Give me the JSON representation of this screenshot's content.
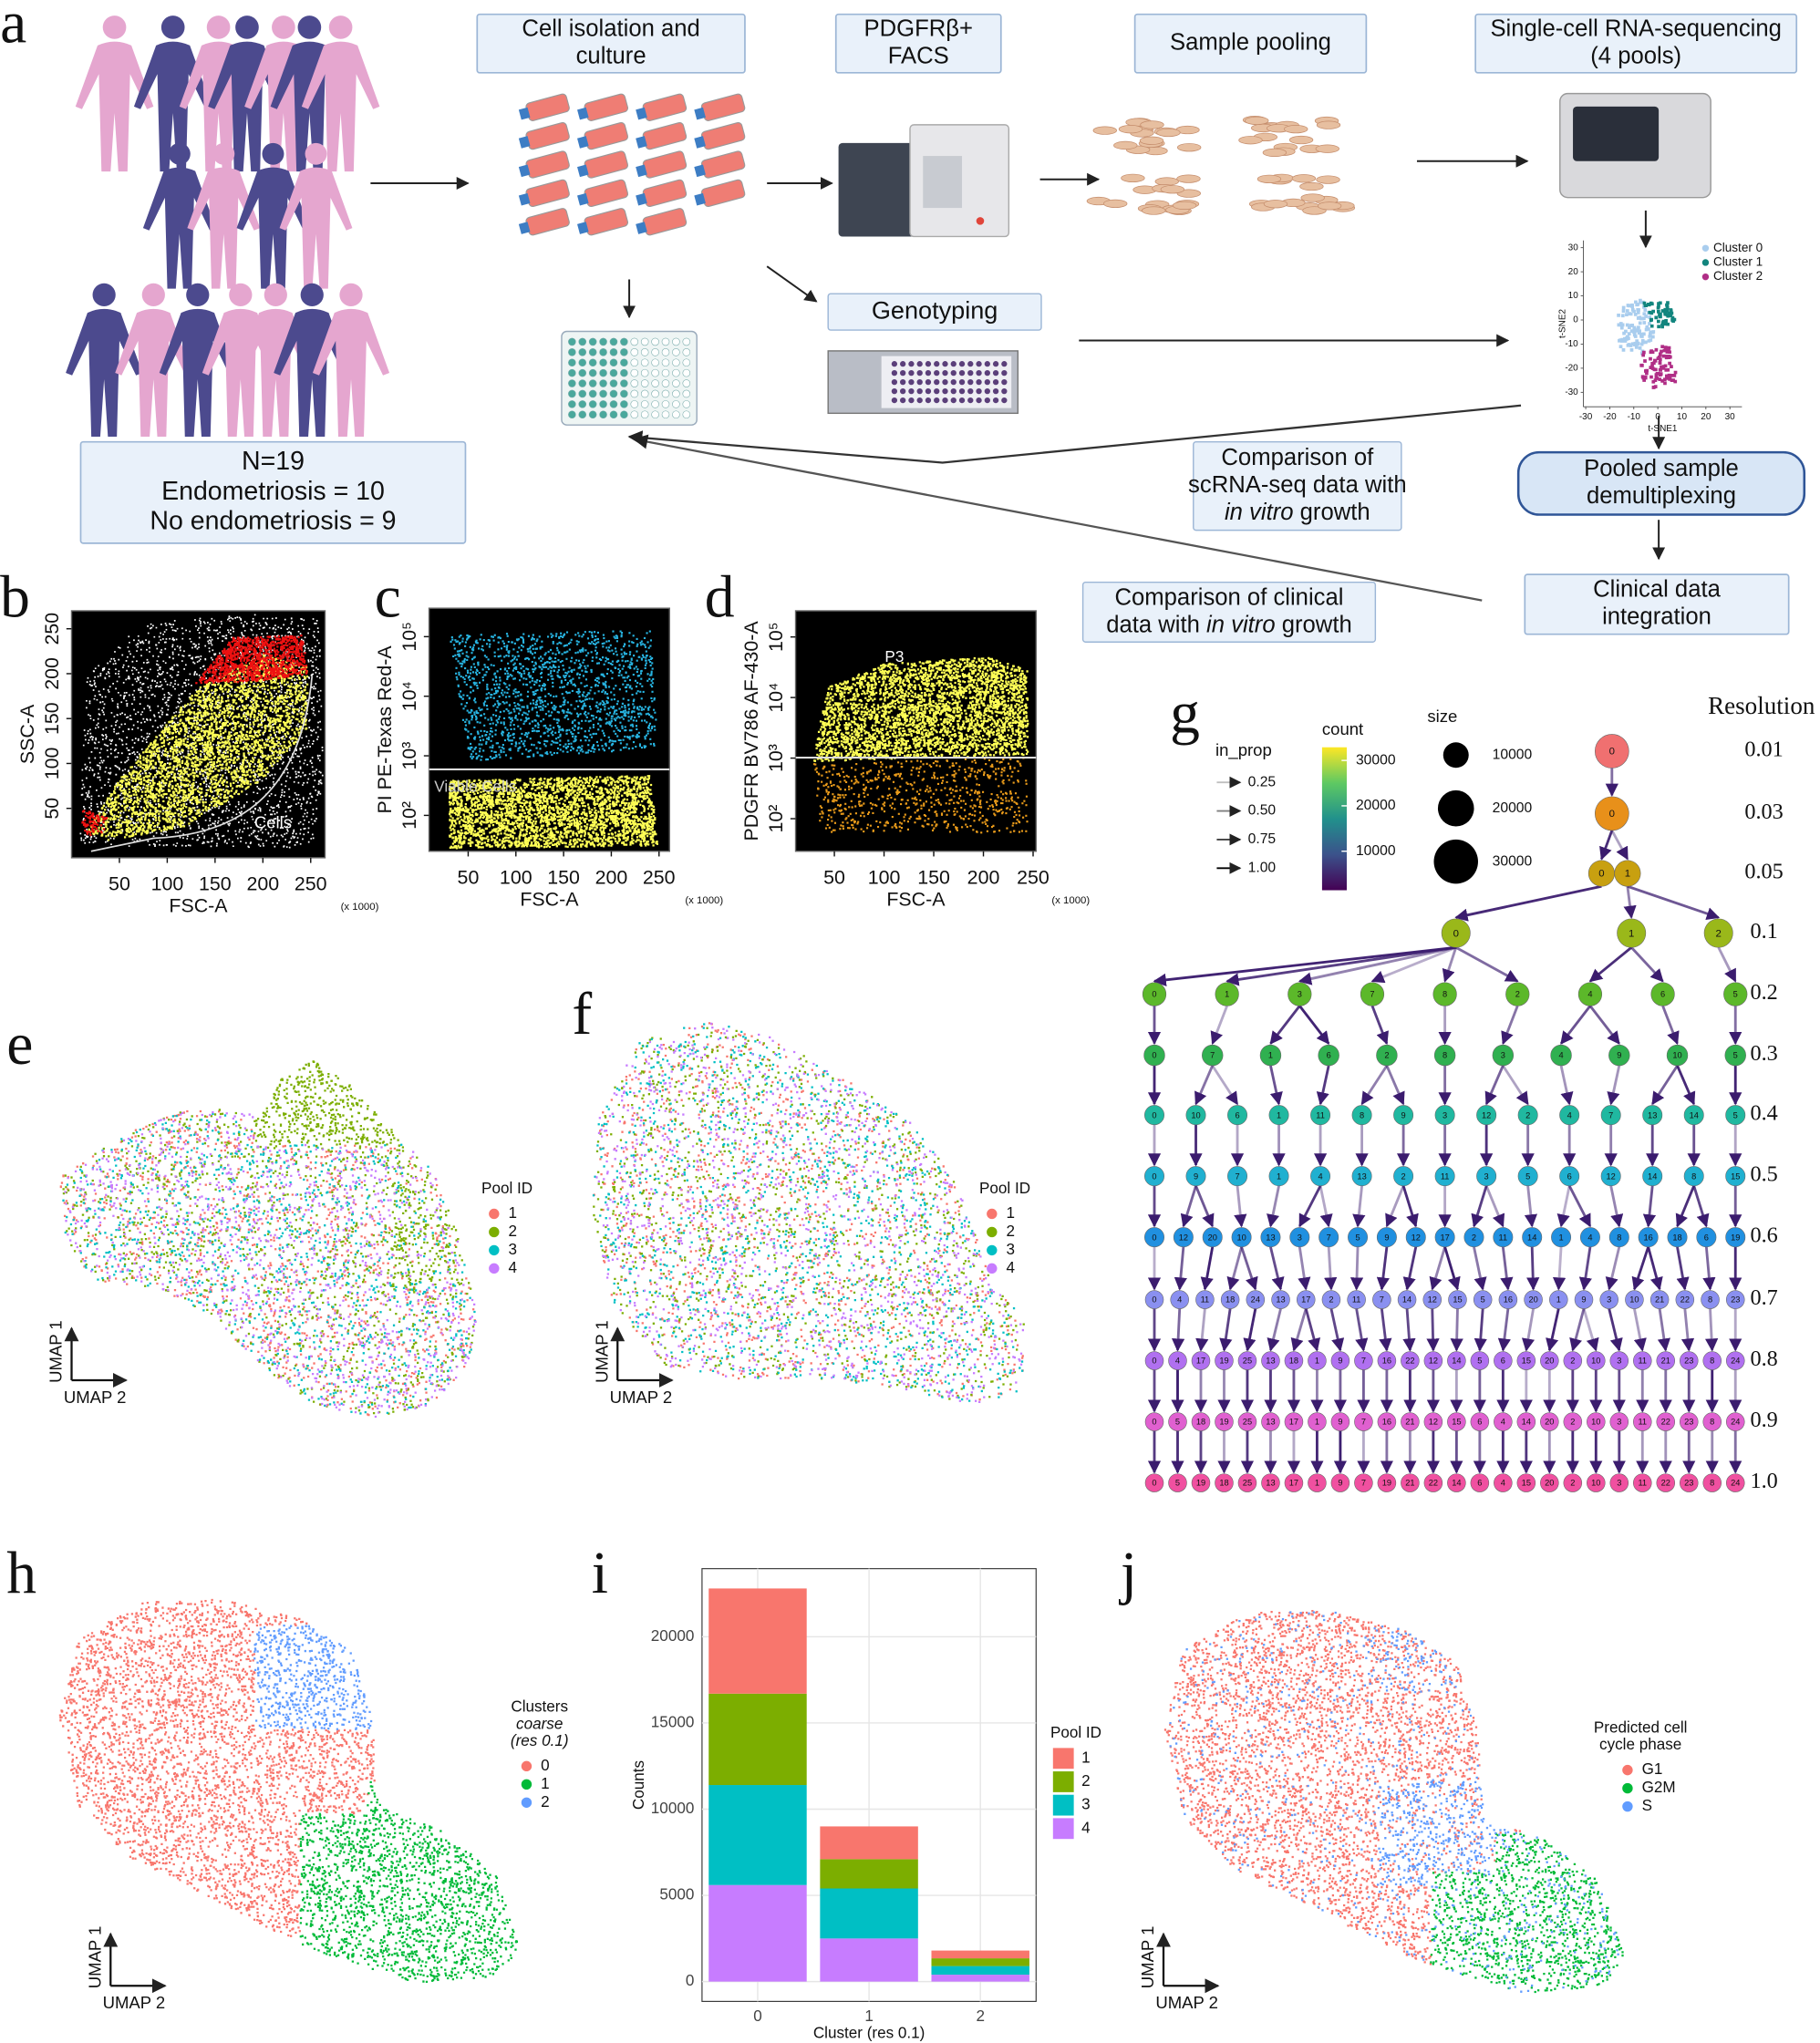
{
  "panel_labels": [
    "a",
    "b",
    "c",
    "d",
    "e",
    "f",
    "g",
    "h",
    "i",
    "j"
  ],
  "workflow": {
    "steps": [
      {
        "lines": [
          "Cell isolation and",
          "culture"
        ]
      },
      {
        "lines": [
          "PDGFRβ+",
          "FACS"
        ]
      },
      {
        "lines": [
          "Sample pooling"
        ]
      },
      {
        "lines": [
          "Single-cell RNA-sequencing",
          "(4 pools)"
        ]
      }
    ],
    "genotyping": "Genotyping",
    "cohort": [
      "N=19",
      "Endometriosis = 10",
      "No endometriosis = 9"
    ],
    "demultiplexing": [
      "Pooled sample",
      "demultiplexing"
    ],
    "clinical": [
      "Clinical data",
      "integration"
    ],
    "comparison_scrna": {
      "lines": [
        "Comparison of",
        "scRNA-seq data with"
      ],
      "italic": "in vitro",
      "tail": "growth"
    },
    "comparison_clinical": {
      "lines": [
        "Comparison of clinical"
      ],
      "prefix": "data with",
      "italic": "in vitro",
      "tail": "growth"
    },
    "tsne": {
      "xlabel": "t-SNE1",
      "ylabel": "t-SNE2",
      "xlim": [
        -31,
        35
      ],
      "ylim": [
        -36,
        33
      ],
      "xticks": [
        -30,
        -20,
        -10,
        0,
        10,
        20,
        30
      ],
      "yticks": [
        30,
        20,
        10,
        0,
        -10,
        -20,
        -30
      ],
      "clusters": [
        {
          "name": "Cluster 0",
          "color": "#a9cdee"
        },
        {
          "name": "Cluster 1",
          "color": "#12857e"
        },
        {
          "name": "Cluster 2",
          "color": "#b02e86"
        }
      ]
    }
  },
  "flow": [
    {
      "xlabel": "FSC-A",
      "ylabel": "SSC-A",
      "unit": "(x 1000)",
      "xlim": [
        0,
        265
      ],
      "ylim": [
        -5,
        270
      ],
      "ylog": false,
      "xticks": [
        50,
        100,
        150,
        200,
        250
      ],
      "yticks": [
        50,
        100,
        150,
        200,
        250
      ],
      "gate": "Cells"
    },
    {
      "xlabel": "FSC-A",
      "ylabel": "PI PE-Texas Red-A",
      "unit": "(x 1000)",
      "xlim": [
        9,
        261
      ],
      "ylim": [
        25,
        300000
      ],
      "ylog": true,
      "xticks": [
        50,
        100,
        150,
        200,
        250
      ],
      "yticks": [
        {
          "value": 100,
          "label": "10²"
        },
        {
          "value": 1000,
          "label": "10³"
        },
        {
          "value": 10000,
          "label": "10⁴"
        },
        {
          "value": 100000,
          "label": "10⁵"
        }
      ],
      "gate": "Viable Cells"
    },
    {
      "xlabel": "FSC-A",
      "ylabel": "PDGFR BV786 AF-430-A",
      "unit": "(x 1000)",
      "xlim": [
        11,
        253
      ],
      "ylim": [
        29,
        270000
      ],
      "ylog": true,
      "xticks": [
        50,
        100,
        150,
        200,
        250
      ],
      "yticks": [
        {
          "value": 100,
          "label": "10²"
        },
        {
          "value": 1000,
          "label": "10³"
        },
        {
          "value": 10000,
          "label": "10⁴"
        },
        {
          "value": 100000,
          "label": "10⁵"
        }
      ],
      "gate": "P3"
    }
  ],
  "umaps": {
    "e": {
      "xlabel": "UMAP 2",
      "ylabel": "UMAP 1",
      "legend_title": [
        "Pool ID"
      ],
      "groups": [
        {
          "name": "1",
          "color": "#F8766D"
        },
        {
          "name": "2",
          "color": "#7CAE00"
        },
        {
          "name": "3",
          "color": "#00BFC4"
        },
        {
          "name": "4",
          "color": "#C77CFF"
        }
      ]
    },
    "f": {
      "xlabel": "UMAP 2",
      "ylabel": "UMAP 1",
      "legend_title": [
        "Pool ID"
      ],
      "groups": [
        {
          "name": "1",
          "color": "#F8766D"
        },
        {
          "name": "2",
          "color": "#7CAE00"
        },
        {
          "name": "3",
          "color": "#00BFC4"
        },
        {
          "name": "4",
          "color": "#C77CFF"
        }
      ]
    },
    "h": {
      "xlabel": "UMAP 2",
      "ylabel": "UMAP 1",
      "legend_title": [
        "Clusters"
      ],
      "legend_italic": "coarse",
      "legend_note": "(res 0.1)",
      "groups": [
        {
          "name": "0",
          "color": "#F8766D"
        },
        {
          "name": "1",
          "color": "#00BA38"
        },
        {
          "name": "2",
          "color": "#619CFF"
        }
      ]
    },
    "j": {
      "xlabel": "UMAP 2",
      "ylabel": "UMAP 1",
      "legend_title": [
        "Predicted cell",
        "cycle phase"
      ],
      "groups": [
        {
          "name": "G1",
          "color": "#F8766D"
        },
        {
          "name": "G2M",
          "color": "#00BA38"
        },
        {
          "name": "S",
          "color": "#619CFF"
        }
      ]
    }
  },
  "clustree": {
    "title": "Resolution",
    "resolutions": [
      "0.01",
      "0.03",
      "0.05",
      "0.1",
      "0.2",
      "0.3",
      "0.4",
      "0.5",
      "0.6",
      "0.7",
      "0.8",
      "0.9",
      "1.0"
    ],
    "rows": [
      [
        "0"
      ],
      [
        "0"
      ],
      [
        "0",
        "1"
      ],
      [
        "0",
        "1",
        "2"
      ],
      [
        "0",
        "1",
        "3",
        "7",
        "8",
        "2",
        "4",
        "6",
        "5"
      ],
      [
        "0",
        "7",
        "1",
        "6",
        "2",
        "8",
        "3",
        "4",
        "9",
        "10",
        "5"
      ],
      [
        "0",
        "10",
        "6",
        "1",
        "11",
        "8",
        "9",
        "3",
        "12",
        "2",
        "4",
        "7",
        "13",
        "14",
        "5"
      ],
      [
        "0",
        "9",
        "7",
        "1",
        "4",
        "13",
        "2",
        "11",
        "3",
        "5",
        "6",
        "12",
        "14",
        "8",
        "15"
      ],
      [
        "0",
        "12",
        "20",
        "10",
        "13",
        "3",
        "7",
        "5",
        "9",
        "12",
        "17",
        "2",
        "11",
        "14",
        "1",
        "4",
        "8",
        "16",
        "18",
        "6",
        "19"
      ],
      [
        "0",
        "4",
        "11",
        "18",
        "24",
        "13",
        "17",
        "2",
        "11",
        "7",
        "14",
        "12",
        "15",
        "5",
        "16",
        "20",
        "1",
        "9",
        "3",
        "10",
        "21",
        "22",
        "8",
        "23"
      ],
      [
        "0",
        "4",
        "17",
        "19",
        "25",
        "13",
        "18",
        "1",
        "9",
        "7",
        "16",
        "22",
        "12",
        "14",
        "5",
        "6",
        "15",
        "20",
        "2",
        "10",
        "3",
        "11",
        "21",
        "23",
        "8",
        "24"
      ],
      [
        "0",
        "5",
        "18",
        "19",
        "25",
        "13",
        "17",
        "1",
        "9",
        "7",
        "16",
        "21",
        "12",
        "15",
        "6",
        "4",
        "14",
        "20",
        "2",
        "10",
        "3",
        "11",
        "22",
        "23",
        "8",
        "24"
      ],
      [
        "0",
        "5",
        "19",
        "18",
        "25",
        "13",
        "17",
        "1",
        "9",
        "7",
        "19",
        "21",
        "22",
        "14",
        "6",
        "4",
        "15",
        "20",
        "2",
        "10",
        "3",
        "11",
        "22",
        "23",
        "8",
        "24"
      ]
    ],
    "in_prop": {
      "title": "in_prop",
      "ticks": [
        0.25,
        {
          "value": 0.5,
          "label": "0.50"
        },
        0.75,
        {
          "value": 1,
          "label": "1.00"
        }
      ]
    },
    "count": {
      "title": "count",
      "lim": [
        1400,
        32900
      ],
      "ticks": [
        10000,
        20000,
        30000
      ]
    },
    "size": {
      "title": "size",
      "ticks": [
        10000,
        20000,
        30000
      ]
    }
  },
  "chart_data": {
    "type": "bar",
    "stacked": true,
    "xlabel": "Cluster (res 0.1)",
    "ylabel": "Counts",
    "legend_title": "Pool ID",
    "categories": [
      "0",
      "1",
      "2"
    ],
    "series": [
      {
        "name": "1",
        "color": "#F8766D",
        "values": [
          6100,
          1900,
          450
        ]
      },
      {
        "name": "2",
        "color": "#7CAE00",
        "values": [
          5300,
          1700,
          450
        ]
      },
      {
        "name": "3",
        "color": "#00BFC4",
        "values": [
          5800,
          2900,
          500
        ]
      },
      {
        "name": "4",
        "color": "#C77CFF",
        "values": [
          5600,
          2500,
          400
        ]
      }
    ],
    "ylim": [
      -1150,
      23950
    ],
    "yticks": [
      0,
      5000,
      10000,
      15000,
      20000
    ],
    "grid": true
  }
}
